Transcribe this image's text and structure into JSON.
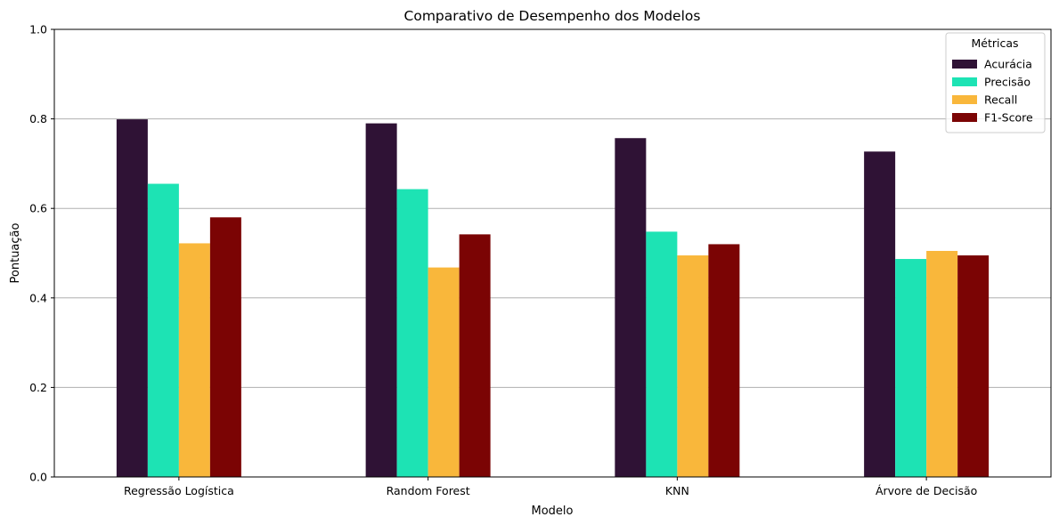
{
  "chart_data": {
    "type": "bar",
    "title": "Comparativo de Desempenho dos Modelos",
    "xlabel": "Modelo",
    "ylabel": "Pontuação",
    "ylim": [
      0,
      1.0
    ],
    "yticks": [
      "0.0",
      "0.2",
      "0.4",
      "0.6",
      "0.8",
      "1.0"
    ],
    "grid": "y",
    "legend_title": "Métricas",
    "legend_position": "top-right",
    "categories": [
      "Regressão Logística",
      "Random Forest",
      "KNN",
      "Árvore de Decisão"
    ],
    "series": [
      {
        "name": "Acurácia",
        "color": "#2f1235",
        "values": [
          0.799,
          0.79,
          0.757,
          0.727
        ]
      },
      {
        "name": "Precisão",
        "color": "#1de3b4",
        "values": [
          0.655,
          0.643,
          0.548,
          0.487
        ]
      },
      {
        "name": "Recall",
        "color": "#f9b73b",
        "values": [
          0.522,
          0.468,
          0.495,
          0.505
        ]
      },
      {
        "name": "F1-Score",
        "color": "#7b0404",
        "values": [
          0.58,
          0.542,
          0.52,
          0.495
        ]
      }
    ]
  }
}
